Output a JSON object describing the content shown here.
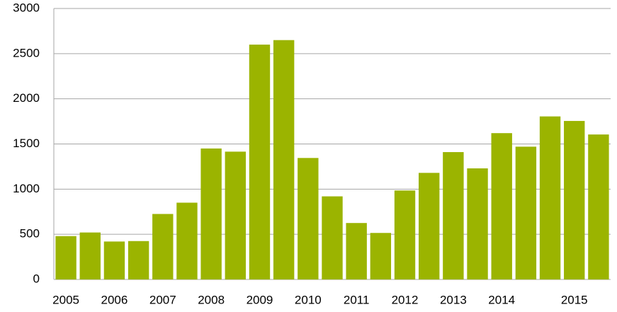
{
  "chart_data": {
    "type": "bar",
    "categories": [
      "2005",
      null,
      "2006",
      null,
      "2007",
      null,
      "2008",
      null,
      "2009",
      null,
      "2010",
      null,
      "2011",
      null,
      "2012",
      null,
      "2013",
      null,
      "2014",
      null,
      null,
      "2015",
      null
    ],
    "values": [
      480,
      520,
      420,
      425,
      725,
      850,
      1450,
      1415,
      2600,
      2650,
      1345,
      920,
      625,
      515,
      985,
      1180,
      1410,
      1230,
      1620,
      1470,
      1805,
      1755,
      1605
    ],
    "color": "#9bb400",
    "ylim": [
      0,
      3000
    ],
    "yticks": [
      0,
      500,
      1000,
      1500,
      2000,
      2500,
      3000
    ],
    "grid": true
  }
}
